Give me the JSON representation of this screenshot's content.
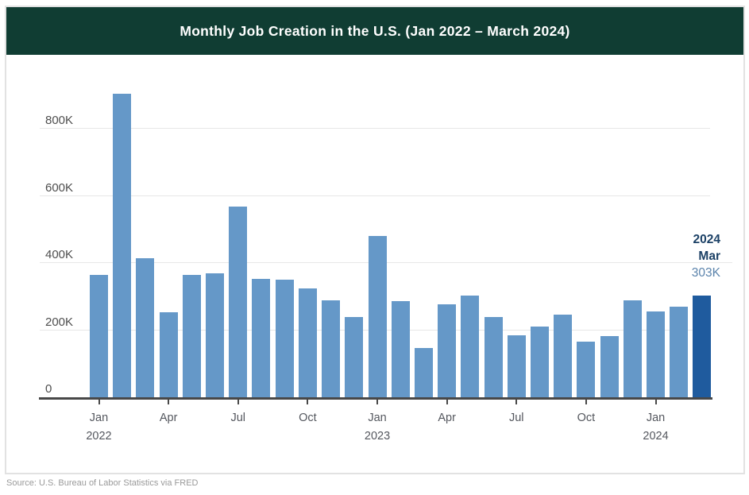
{
  "header": {
    "title": "Monthly Job Creation in the U.S. (Jan 2022 – March 2024)",
    "bg_color": "#103d33",
    "text_color": "#ffffff"
  },
  "chart_data": {
    "type": "bar",
    "title": "Monthly Job Creation in the U.S. (Jan 2022 – March 2024)",
    "unit": "jobs added per month (thousands)",
    "categories": [
      "Jan 2022",
      "Feb 2022",
      "Mar 2022",
      "Apr 2022",
      "May 2022",
      "Jun 2022",
      "Jul 2022",
      "Aug 2022",
      "Sep 2022",
      "Oct 2022",
      "Nov 2022",
      "Dec 2022",
      "Jan 2023",
      "Feb 2023",
      "Mar 2023",
      "Apr 2023",
      "May 2023",
      "Jun 2023",
      "Jul 2023",
      "Aug 2023",
      "Sep 2023",
      "Oct 2023",
      "Nov 2023",
      "Dec 2023",
      "Jan 2024",
      "Feb 2024",
      "Mar 2024"
    ],
    "values": [
      364,
      904,
      414,
      254,
      364,
      370,
      568,
      352,
      350,
      324,
      290,
      239,
      482,
      287,
      146,
      278,
      303,
      240,
      184,
      210,
      246,
      165,
      182,
      290,
      256,
      270,
      303
    ],
    "values_unit": "K",
    "ylim": [
      0,
      950
    ],
    "yticks": [
      {
        "value": 0,
        "label": "0"
      },
      {
        "value": 200,
        "label": "200K"
      },
      {
        "value": 400,
        "label": "400K"
      },
      {
        "value": 600,
        "label": "600K"
      },
      {
        "value": 800,
        "label": "800K"
      }
    ],
    "xticks": [
      {
        "index": 0,
        "month": "Jan",
        "year": "2022"
      },
      {
        "index": 3,
        "month": "Apr",
        "year": ""
      },
      {
        "index": 6,
        "month": "Jul",
        "year": ""
      },
      {
        "index": 9,
        "month": "Oct",
        "year": ""
      },
      {
        "index": 12,
        "month": "Jan",
        "year": "2023"
      },
      {
        "index": 15,
        "month": "Apr",
        "year": ""
      },
      {
        "index": 18,
        "month": "Jul",
        "year": ""
      },
      {
        "index": 21,
        "month": "Oct",
        "year": ""
      },
      {
        "index": 24,
        "month": "Jan",
        "year": "2024"
      }
    ],
    "grid": "horizontal",
    "legend": "none",
    "bar_color": "#6598c8",
    "highlight_color": "#1f5b9e",
    "highlight_index": 26,
    "annotation": {
      "year": "2024",
      "month": "Mar",
      "value": "303K",
      "dark_color": "#1c4166",
      "value_color": "#5c84ac"
    }
  },
  "footer": {
    "source": "Source: U.S. Bureau of Labor Statistics via FRED"
  }
}
